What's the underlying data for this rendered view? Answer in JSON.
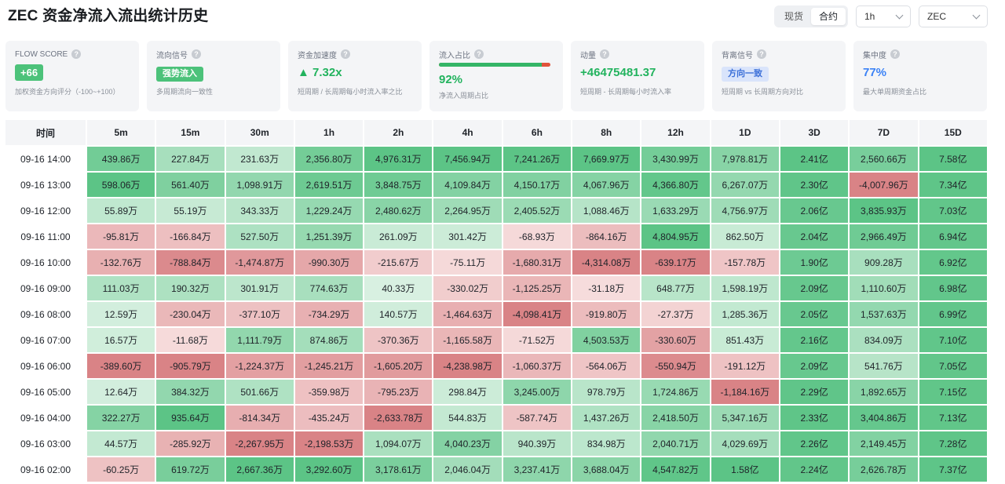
{
  "title": "ZEC 资金净流入流出统计历史",
  "controls": {
    "segment": [
      {
        "label": "现货",
        "active": false
      },
      {
        "label": "合约",
        "active": true
      }
    ],
    "interval_select": "1h",
    "symbol_select": "ZEC"
  },
  "cards": {
    "flow_score": {
      "label": "FLOW SCORE",
      "value": "+66",
      "desc": "加权资金方向评分（-100~+100）"
    },
    "flow_signal": {
      "label": "流向信号",
      "value": "强势流入",
      "desc": "多周期流向一致性"
    },
    "acceleration": {
      "label": "资金加速度",
      "value": "▲ 7.32x",
      "desc": "短周期 / 长周期每小时流入率之比"
    },
    "inflow_ratio": {
      "label": "流入占比",
      "value": "92%",
      "fraction": 0.92,
      "desc": "净流入周期占比"
    },
    "momentum": {
      "label": "动量",
      "value": "+46475481.37",
      "desc": "短周期 - 长周期每小时流入率"
    },
    "divergence": {
      "label": "背离信号",
      "value": "方向一致",
      "desc": "短周期 vs 长周期方向对比"
    },
    "concentration": {
      "label": "集中度",
      "value": "77%",
      "desc": "最大单周期资金占比"
    }
  },
  "colors": {
    "accent_green": "#22b35e",
    "accent_blue": "#3b82f6",
    "positive_base": "#dff3e6",
    "positive_strong": "#5cc486",
    "negative_base": "#f8e1e1",
    "negative_strong": "#d98386"
  },
  "table": {
    "headers": [
      "时间",
      "5m",
      "15m",
      "30m",
      "1h",
      "2h",
      "4h",
      "6h",
      "8h",
      "12h",
      "1D",
      "3D",
      "7D",
      "15D"
    ],
    "rows": [
      [
        "09-16 14:00",
        "439.86万",
        "227.84万",
        "231.63万",
        "2,356.80万",
        "4,976.31万",
        "7,456.94万",
        "7,241.26万",
        "7,669.97万",
        "3,430.99万",
        "7,978.81万",
        "2.41亿",
        "2,560.66万",
        "7.58亿"
      ],
      [
        "09-16 13:00",
        "598.06万",
        "561.40万",
        "1,098.91万",
        "2,619.51万",
        "3,848.75万",
        "4,109.84万",
        "4,150.17万",
        "4,067.96万",
        "4,366.80万",
        "6,267.07万",
        "2.30亿",
        "-4,007.96万",
        "7.34亿"
      ],
      [
        "09-16 12:00",
        "55.89万",
        "55.19万",
        "343.33万",
        "1,229.24万",
        "2,480.62万",
        "2,264.95万",
        "2,405.52万",
        "1,088.46万",
        "1,633.29万",
        "4,756.97万",
        "2.06亿",
        "3,835.93万",
        "7.03亿"
      ],
      [
        "09-16 11:00",
        "-95.81万",
        "-166.84万",
        "527.50万",
        "1,251.39万",
        "261.09万",
        "301.42万",
        "-68.93万",
        "-864.16万",
        "4,804.95万",
        "862.50万",
        "2.04亿",
        "2,966.49万",
        "6.94亿"
      ],
      [
        "09-16 10:00",
        "-132.76万",
        "-788.84万",
        "-1,474.87万",
        "-990.30万",
        "-215.67万",
        "-75.11万",
        "-1,680.31万",
        "-4,314.08万",
        "-639.17万",
        "-157.78万",
        "1.90亿",
        "909.28万",
        "6.92亿"
      ],
      [
        "09-16 09:00",
        "111.03万",
        "190.32万",
        "301.91万",
        "774.63万",
        "40.33万",
        "-330.02万",
        "-1,125.25万",
        "-31.18万",
        "648.77万",
        "1,598.19万",
        "2.09亿",
        "1,110.60万",
        "6.98亿"
      ],
      [
        "09-16 08:00",
        "12.59万",
        "-230.04万",
        "-377.10万",
        "-734.29万",
        "140.57万",
        "-1,464.63万",
        "-4,098.41万",
        "-919.80万",
        "-27.37万",
        "1,285.36万",
        "2.05亿",
        "1,537.63万",
        "6.99亿"
      ],
      [
        "09-16 07:00",
        "16.57万",
        "-11.68万",
        "1,111.79万",
        "874.86万",
        "-370.36万",
        "-1,165.58万",
        "-71.52万",
        "4,503.53万",
        "-330.60万",
        "851.43万",
        "2.16亿",
        "834.09万",
        "7.10亿"
      ],
      [
        "09-16 06:00",
        "-389.60万",
        "-905.79万",
        "-1,224.37万",
        "-1,245.21万",
        "-1,605.20万",
        "-4,238.98万",
        "-1,060.37万",
        "-564.06万",
        "-550.94万",
        "-191.12万",
        "2.09亿",
        "541.76万",
        "7.05亿"
      ],
      [
        "09-16 05:00",
        "12.64万",
        "384.32万",
        "501.66万",
        "-359.98万",
        "-795.23万",
        "298.84万",
        "3,245.00万",
        "978.79万",
        "1,724.86万",
        "-1,184.16万",
        "2.29亿",
        "1,892.65万",
        "7.15亿"
      ],
      [
        "09-16 04:00",
        "322.27万",
        "935.64万",
        "-814.34万",
        "-435.24万",
        "-2,633.78万",
        "544.83万",
        "-587.74万",
        "1,437.26万",
        "2,418.50万",
        "5,347.16万",
        "2.33亿",
        "3,404.86万",
        "7.13亿"
      ],
      [
        "09-16 03:00",
        "44.57万",
        "-285.92万",
        "-2,267.95万",
        "-2,198.53万",
        "1,094.07万",
        "4,040.23万",
        "940.39万",
        "834.98万",
        "2,040.71万",
        "4,029.69万",
        "2.26亿",
        "2,149.45万",
        "7.28亿"
      ],
      [
        "09-16 02:00",
        "-60.25万",
        "619.72万",
        "2,667.36万",
        "3,292.60万",
        "3,178.61万",
        "2,046.04万",
        "3,237.41万",
        "3,688.04万",
        "4,547.82万",
        "1.58亿",
        "2.24亿",
        "2,626.78万",
        "7.37亿"
      ]
    ]
  }
}
